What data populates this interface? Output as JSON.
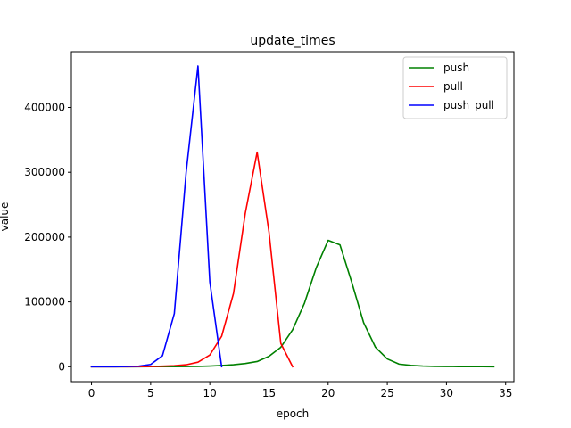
{
  "chart_data": {
    "type": "line",
    "title": "update_times",
    "xlabel": "epoch",
    "ylabel": "value",
    "xlim": [
      -1.7,
      35.7
    ],
    "ylim": [
      -23000,
      486000
    ],
    "xticks": [
      0,
      5,
      10,
      15,
      20,
      25,
      30,
      35
    ],
    "yticks": [
      0,
      100000,
      200000,
      300000,
      400000
    ],
    "grid": false,
    "legend_position": "top-right",
    "series": [
      {
        "name": "push",
        "color": "#008000",
        "x": [
          0,
          1,
          2,
          3,
          4,
          5,
          6,
          7,
          8,
          9,
          10,
          11,
          12,
          13,
          14,
          15,
          16,
          17,
          18,
          19,
          20,
          21,
          22,
          23,
          24,
          25,
          26,
          27,
          28,
          29,
          30,
          31,
          32,
          33,
          34
        ],
        "y": [
          0,
          0,
          0,
          0,
          0,
          50,
          100,
          200,
          300,
          500,
          1000,
          1800,
          3000,
          5000,
          8000,
          16000,
          30000,
          57000,
          98000,
          153000,
          195000,
          188000,
          130000,
          68000,
          30000,
          12000,
          4000,
          2000,
          1000,
          500,
          300,
          200,
          100,
          50,
          0
        ]
      },
      {
        "name": "pull",
        "color": "#ff0000",
        "x": [
          0,
          1,
          2,
          3,
          4,
          5,
          6,
          7,
          8,
          9,
          10,
          11,
          12,
          13,
          14,
          15,
          16,
          17
        ],
        "y": [
          0,
          0,
          0,
          0,
          100,
          300,
          800,
          1500,
          3000,
          7000,
          18000,
          47000,
          113000,
          237000,
          331000,
          208000,
          36000,
          0
        ]
      },
      {
        "name": "push_pull",
        "color": "#0000ff",
        "x": [
          0,
          1,
          2,
          3,
          4,
          5,
          6,
          7,
          8,
          9,
          10,
          11
        ],
        "y": [
          0,
          0,
          0,
          300,
          800,
          3500,
          17000,
          82000,
          300000,
          464000,
          131000,
          0
        ]
      }
    ]
  }
}
